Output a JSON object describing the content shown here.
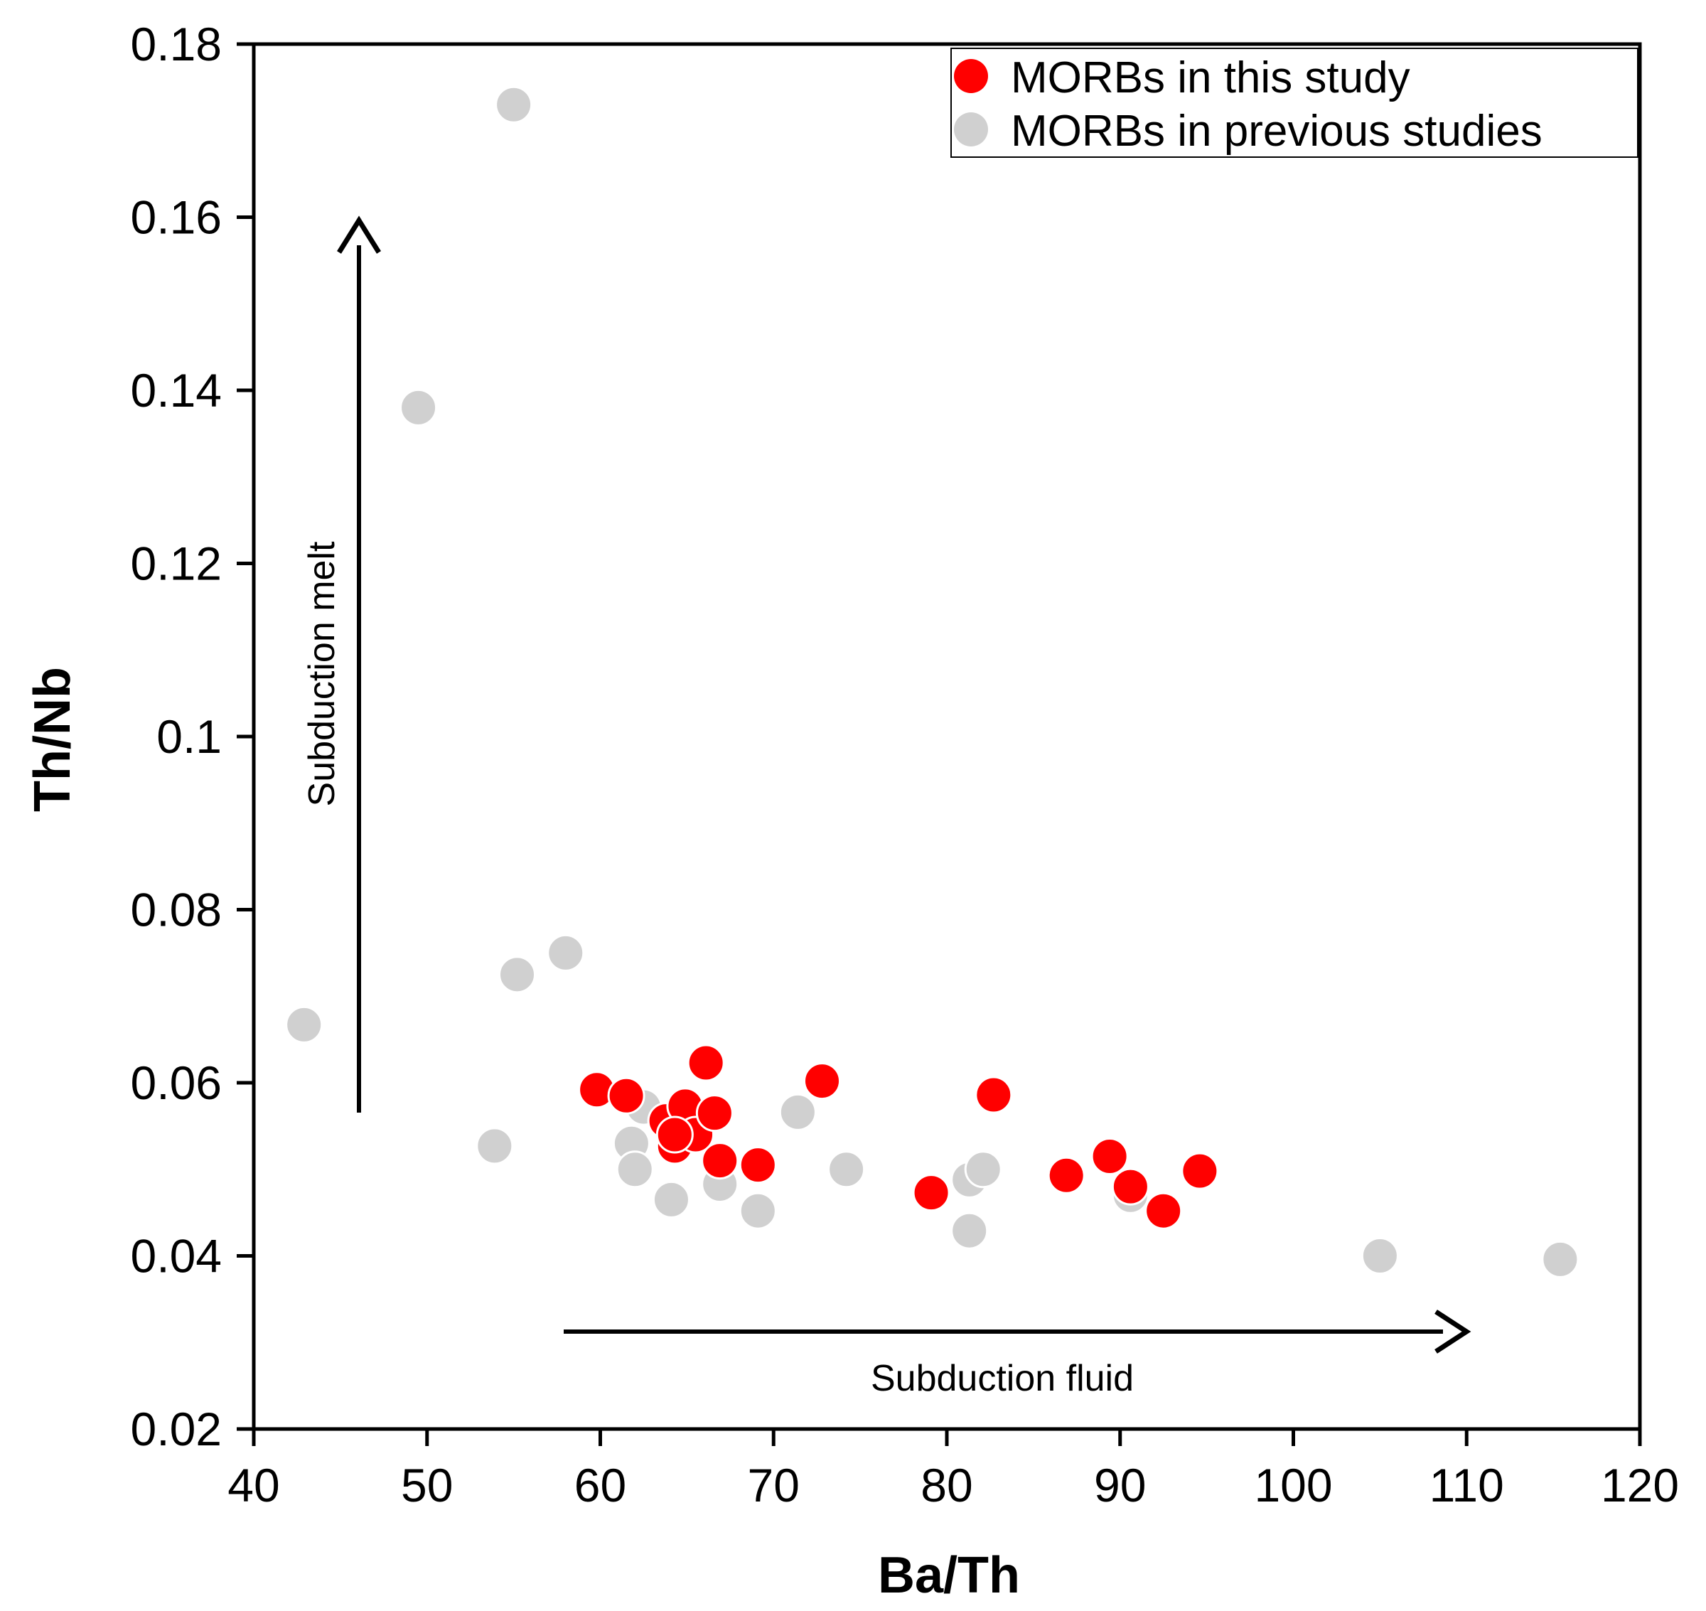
{
  "chart_data": {
    "type": "scatter",
    "xlabel": "Ba/Th",
    "ylabel": "Th/Nb",
    "xlim": [
      40,
      120
    ],
    "ylim": [
      0.02,
      0.18
    ],
    "xticks": [
      "40",
      "50",
      "60",
      "70",
      "80",
      "90",
      "100",
      "110",
      "120"
    ],
    "yticks": [
      "0.02",
      "0.04",
      "0.06",
      "0.08",
      "0.1",
      "0.12",
      "0.14",
      "0.16",
      "0.18"
    ],
    "grid": false,
    "legend_position": "top-right",
    "annotations": {
      "vertical_arrow": "Subduction melt",
      "horizontal_arrow": "Subduction fluid"
    },
    "series": [
      {
        "name": "MORBs in previous studies",
        "color": "#d0d0d0",
        "points": [
          [
            55.0,
            0.173
          ],
          [
            49.5,
            0.138
          ],
          [
            42.9,
            0.0667
          ],
          [
            55.2,
            0.0725
          ],
          [
            58.0,
            0.075
          ],
          [
            53.9,
            0.0527
          ],
          [
            62.5,
            0.0572
          ],
          [
            61.8,
            0.053
          ],
          [
            62.0,
            0.05
          ],
          [
            64.1,
            0.0465
          ],
          [
            66.9,
            0.0483
          ],
          [
            69.1,
            0.0452
          ],
          [
            71.4,
            0.0566
          ],
          [
            74.2,
            0.05
          ],
          [
            81.3,
            0.0488
          ],
          [
            82.1,
            0.05
          ],
          [
            81.3,
            0.0429
          ],
          [
            90.6,
            0.047
          ],
          [
            105.0,
            0.04
          ],
          [
            115.4,
            0.0396
          ]
        ]
      },
      {
        "name": "MORBs in this study",
        "color": "#ff0000",
        "points": [
          [
            59.8,
            0.0592
          ],
          [
            61.5,
            0.0585
          ],
          [
            63.8,
            0.0556
          ],
          [
            64.3,
            0.0527
          ],
          [
            64.9,
            0.0573
          ],
          [
            65.5,
            0.054
          ],
          [
            66.1,
            0.0623
          ],
          [
            66.6,
            0.0565
          ],
          [
            66.9,
            0.051
          ],
          [
            69.1,
            0.0505
          ],
          [
            72.8,
            0.0602
          ],
          [
            79.1,
            0.0473
          ],
          [
            82.7,
            0.0586
          ],
          [
            86.9,
            0.0493
          ],
          [
            89.4,
            0.0515
          ],
          [
            90.6,
            0.048
          ],
          [
            92.5,
            0.0452
          ],
          [
            94.6,
            0.0498
          ],
          [
            64.3,
            0.054
          ]
        ]
      }
    ]
  }
}
